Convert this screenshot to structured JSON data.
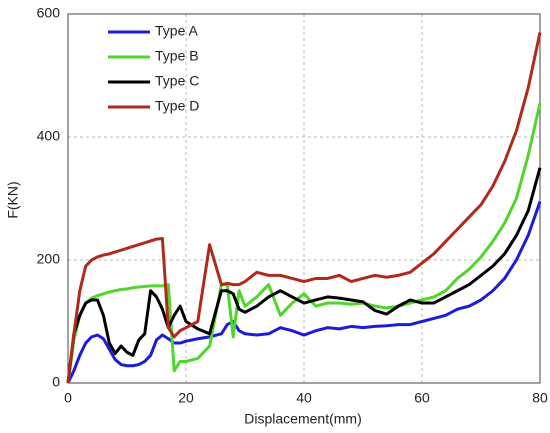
{
  "chart_data": {
    "type": "line",
    "xlabel": "Displacement(mm)",
    "ylabel": "F(KN)",
    "x": [
      0,
      1,
      2,
      3,
      4,
      5,
      6,
      7,
      8,
      9,
      10,
      11,
      12,
      13,
      14,
      15,
      16,
      17,
      18,
      19,
      20,
      22,
      24,
      26,
      27,
      28,
      29,
      30,
      32,
      34,
      36,
      38,
      40,
      42,
      44,
      46,
      48,
      50,
      52,
      54,
      56,
      58,
      60,
      62,
      64,
      66,
      68,
      70,
      72,
      74,
      76,
      78,
      80
    ],
    "series": [
      {
        "name": "Type A",
        "color": "#1c1cd8",
        "values": [
          0,
          20,
          45,
          65,
          75,
          78,
          72,
          55,
          38,
          30,
          28,
          28,
          30,
          35,
          45,
          70,
          78,
          72,
          65,
          65,
          68,
          72,
          75,
          80,
          95,
          100,
          85,
          80,
          78,
          80,
          90,
          85,
          78,
          85,
          90,
          88,
          92,
          90,
          92,
          93,
          95,
          95,
          100,
          105,
          110,
          120,
          125,
          135,
          150,
          170,
          200,
          240,
          295
        ]
      },
      {
        "name": "Type B",
        "color": "#4fd62a",
        "values": [
          0,
          70,
          110,
          130,
          138,
          142,
          145,
          148,
          150,
          152,
          153,
          155,
          156,
          157,
          158,
          158,
          158,
          160,
          20,
          35,
          35,
          40,
          60,
          160,
          160,
          75,
          150,
          125,
          140,
          160,
          110,
          130,
          145,
          125,
          130,
          130,
          128,
          130,
          125,
          122,
          125,
          130,
          135,
          140,
          150,
          170,
          185,
          205,
          230,
          260,
          300,
          370,
          455
        ]
      },
      {
        "name": "Type C",
        "color": "#000000",
        "values": [
          0,
          80,
          110,
          130,
          135,
          135,
          110,
          65,
          48,
          60,
          50,
          45,
          70,
          80,
          150,
          140,
          120,
          90,
          110,
          125,
          100,
          88,
          80,
          150,
          150,
          145,
          120,
          115,
          125,
          140,
          150,
          140,
          130,
          135,
          140,
          138,
          135,
          132,
          118,
          112,
          125,
          135,
          130,
          130,
          140,
          150,
          160,
          175,
          190,
          210,
          240,
          280,
          350
        ]
      },
      {
        "name": "Type D",
        "color": "#b02a1a",
        "values": [
          0,
          80,
          150,
          190,
          200,
          205,
          208,
          210,
          213,
          216,
          219,
          222,
          225,
          228,
          231,
          234,
          235,
          90,
          75,
          85,
          90,
          100,
          225,
          160,
          162,
          160,
          160,
          165,
          180,
          175,
          175,
          170,
          165,
          170,
          170,
          175,
          165,
          170,
          175,
          172,
          175,
          180,
          195,
          210,
          230,
          250,
          270,
          290,
          320,
          360,
          410,
          480,
          570
        ]
      }
    ],
    "xlim": [
      0,
      80
    ],
    "xticks": [
      0,
      20,
      40,
      60,
      80
    ],
    "ylim": [
      0,
      600
    ],
    "yticks": [
      0,
      200,
      400,
      600
    ],
    "grid": true,
    "legend": "upper left"
  }
}
